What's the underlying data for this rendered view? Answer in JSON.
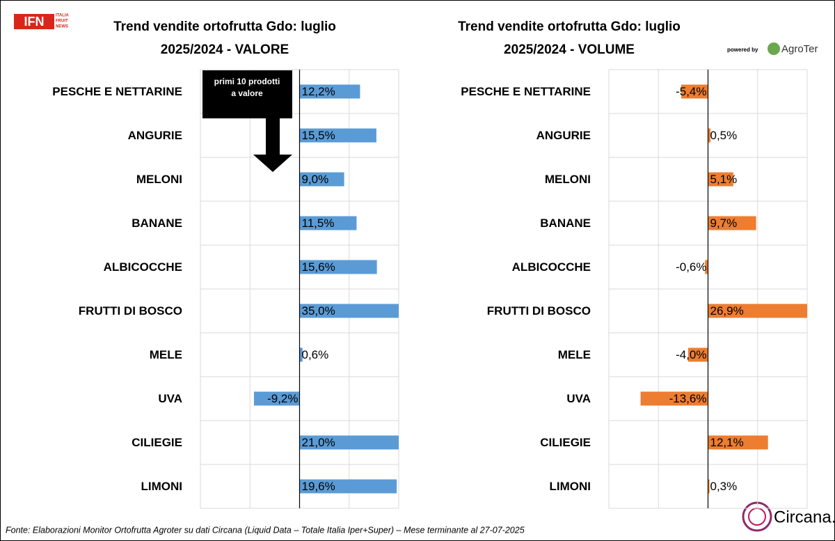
{
  "logo": {
    "name": "IFN",
    "lines": [
      "ITALIA",
      "FRUIT",
      "NEWS"
    ]
  },
  "powered_by": "powered by",
  "agroter": "AgroTer",
  "circana": "Circana.",
  "footer": "Fonte: Elaborazioni Monitor Ortofrutta Agroter su dati Circana (Liquid Data – Totale Italia Iper+Super) – Mese terminante al 27-07-2025",
  "chart_data": [
    {
      "type": "bar",
      "orientation": "horizontal",
      "title": "Trend vendite ortofrutta Gdo: luglio",
      "subtitle": "2025/2024 - VALORE",
      "annotations": [
        "primi 10 prodotti",
        "a valore"
      ],
      "categories": [
        "PESCHE E NETTARINE",
        "ANGURIE",
        "MELONI",
        "BANANE",
        "ALBICOCCHE",
        "FRUTTI DI BOSCO",
        "MELE",
        "UVA",
        "CILIEGIE",
        "LIMONI"
      ],
      "values": [
        12.2,
        15.5,
        9.0,
        11.5,
        15.6,
        35.0,
        0.6,
        -9.2,
        21.0,
        19.6
      ],
      "value_labels": [
        "12,2%",
        "15,5%",
        "9,0%",
        "11,5%",
        "15,6%",
        "35,0%",
        "0,6%",
        "-9,2%",
        "21,0%",
        "19,6%"
      ],
      "color": "#5b9bd5",
      "xlim": [
        -20,
        20
      ],
      "xticks": [
        -20,
        -10,
        0,
        10,
        20
      ],
      "grid": true
    },
    {
      "type": "bar",
      "orientation": "horizontal",
      "title": "Trend vendite ortofrutta Gdo: luglio",
      "subtitle": "2025/2024 - VOLUME",
      "categories": [
        "PESCHE E NETTARINE",
        "ANGURIE",
        "MELONI",
        "BANANE",
        "ALBICOCCHE",
        "FRUTTI DI BOSCO",
        "MELE",
        "UVA",
        "CILIEGIE",
        "LIMONI"
      ],
      "values": [
        -5.4,
        0.5,
        5.1,
        9.7,
        -0.6,
        26.9,
        -4.0,
        -13.6,
        12.1,
        0.3
      ],
      "value_labels": [
        "-5,4%",
        "0,5%",
        "5,1%",
        "9,7%",
        "-0,6%",
        "26,9%",
        "-4,0%",
        "-13,6%",
        "12,1%",
        "0,3%"
      ],
      "color": "#ed7d31",
      "xlim": [
        -20,
        20
      ],
      "xticks": [
        -20,
        -10,
        0,
        10,
        20
      ],
      "grid": true
    }
  ]
}
